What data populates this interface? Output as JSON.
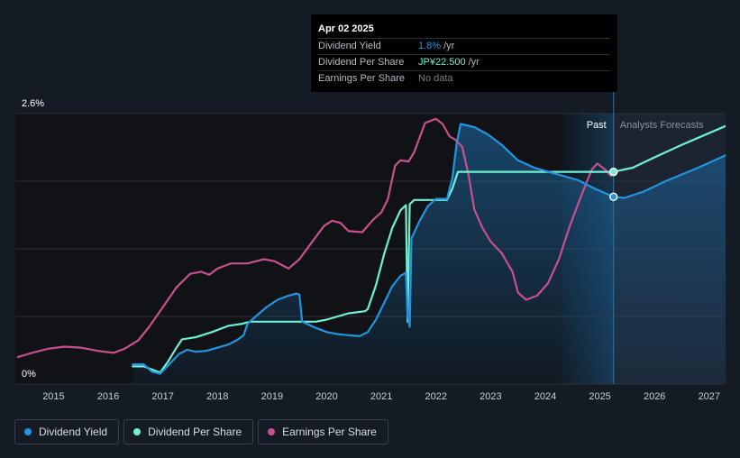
{
  "tooltip": {
    "date": "Apr 02 2025",
    "rows": [
      {
        "name": "Dividend Yield",
        "value": "1.8%",
        "unit": "/yr",
        "color": "#2394df"
      },
      {
        "name": "Dividend Per Share",
        "value": "JP¥22.500",
        "unit": "/yr",
        "color": "#6ff0d2"
      },
      {
        "name": "Earnings Per Share",
        "value": "No data",
        "unit": "",
        "color": "#7a7f87"
      }
    ]
  },
  "regions": {
    "past": "Past",
    "forecast": "Analysts Forecasts"
  },
  "legend": [
    {
      "label": "Dividend Yield",
      "color": "#2394df"
    },
    {
      "label": "Dividend Per Share",
      "color": "#6ff0d2"
    },
    {
      "label": "Earnings Per Share",
      "color": "#c94f8e"
    }
  ],
  "chart_data": {
    "type": "line",
    "x_ticks": [
      "2015",
      "2016",
      "2017",
      "2018",
      "2019",
      "2020",
      "2021",
      "2022",
      "2023",
      "2024",
      "2025",
      "2026",
      "2027"
    ],
    "y_ticks": [
      "0%",
      "2.6%"
    ],
    "ylim": [
      0,
      2.6
    ],
    "xlim": [
      2014.3,
      2027.3
    ],
    "past_end": 2025.25,
    "grid": true,
    "series": [
      {
        "name": "Dividend Yield",
        "color": "#2394df",
        "points": [
          [
            2016.45,
            0.19
          ],
          [
            2016.65,
            0.19
          ],
          [
            2016.8,
            0.12
          ],
          [
            2016.95,
            0.1
          ],
          [
            2017.1,
            0.18
          ],
          [
            2017.3,
            0.29
          ],
          [
            2017.45,
            0.33
          ],
          [
            2017.6,
            0.31
          ],
          [
            2017.8,
            0.32
          ],
          [
            2018.0,
            0.35
          ],
          [
            2018.2,
            0.38
          ],
          [
            2018.35,
            0.42
          ],
          [
            2018.48,
            0.47
          ],
          [
            2018.55,
            0.58
          ],
          [
            2018.7,
            0.65
          ],
          [
            2018.9,
            0.74
          ],
          [
            2019.1,
            0.81
          ],
          [
            2019.3,
            0.85
          ],
          [
            2019.45,
            0.87
          ],
          [
            2019.5,
            0.86
          ],
          [
            2019.55,
            0.6
          ],
          [
            2019.8,
            0.54
          ],
          [
            2020.0,
            0.5
          ],
          [
            2020.2,
            0.48
          ],
          [
            2020.4,
            0.47
          ],
          [
            2020.6,
            0.46
          ],
          [
            2020.75,
            0.5
          ],
          [
            2020.9,
            0.62
          ],
          [
            2021.05,
            0.78
          ],
          [
            2021.2,
            0.94
          ],
          [
            2021.35,
            1.04
          ],
          [
            2021.45,
            1.07
          ],
          [
            2021.48,
            0.65
          ],
          [
            2021.52,
            0.55
          ],
          [
            2021.55,
            1.4
          ],
          [
            2021.7,
            1.57
          ],
          [
            2021.85,
            1.71
          ],
          [
            2022.0,
            1.78
          ],
          [
            2022.2,
            1.78
          ],
          [
            2022.3,
            1.98
          ],
          [
            2022.38,
            2.32
          ],
          [
            2022.45,
            2.5
          ],
          [
            2022.7,
            2.47
          ],
          [
            2022.95,
            2.4
          ],
          [
            2023.2,
            2.3
          ],
          [
            2023.5,
            2.15
          ],
          [
            2023.8,
            2.08
          ],
          [
            2024.2,
            2.02
          ],
          [
            2024.6,
            1.96
          ],
          [
            2024.9,
            1.88
          ],
          [
            2025.25,
            1.8
          ],
          [
            2025.45,
            1.79
          ],
          [
            2025.8,
            1.85
          ],
          [
            2026.2,
            1.95
          ],
          [
            2026.8,
            2.08
          ],
          [
            2027.3,
            2.2
          ]
        ]
      },
      {
        "name": "Dividend Per Share",
        "color": "#6ff0d2",
        "points": [
          [
            2016.45,
            0.17
          ],
          [
            2016.65,
            0.17
          ],
          [
            2016.8,
            0.14
          ],
          [
            2016.95,
            0.11
          ],
          [
            2017.1,
            0.22
          ],
          [
            2017.25,
            0.35
          ],
          [
            2017.35,
            0.43
          ],
          [
            2017.6,
            0.45
          ],
          [
            2017.9,
            0.5
          ],
          [
            2018.2,
            0.56
          ],
          [
            2018.45,
            0.58
          ],
          [
            2018.6,
            0.6
          ],
          [
            2019.0,
            0.6
          ],
          [
            2019.5,
            0.6
          ],
          [
            2019.8,
            0.6
          ],
          [
            2020.0,
            0.62
          ],
          [
            2020.2,
            0.65
          ],
          [
            2020.4,
            0.68
          ],
          [
            2020.7,
            0.7
          ],
          [
            2020.75,
            0.72
          ],
          [
            2020.9,
            0.95
          ],
          [
            2021.05,
            1.25
          ],
          [
            2021.2,
            1.5
          ],
          [
            2021.35,
            1.67
          ],
          [
            2021.45,
            1.72
          ],
          [
            2021.48,
            0.6
          ],
          [
            2021.52,
            1.73
          ],
          [
            2021.6,
            1.77
          ],
          [
            2021.9,
            1.77
          ],
          [
            2022.2,
            1.77
          ],
          [
            2022.3,
            1.88
          ],
          [
            2022.4,
            2.04
          ],
          [
            2022.7,
            2.04
          ],
          [
            2023.5,
            2.04
          ],
          [
            2024.5,
            2.04
          ],
          [
            2025.25,
            2.04
          ],
          [
            2025.6,
            2.08
          ],
          [
            2026.0,
            2.18
          ],
          [
            2026.5,
            2.3
          ],
          [
            2027.3,
            2.48
          ]
        ]
      },
      {
        "name": "Earnings Per Share",
        "color": "#c94f8e",
        "points": [
          [
            2014.35,
            0.26
          ],
          [
            2014.6,
            0.3
          ],
          [
            2014.9,
            0.34
          ],
          [
            2015.2,
            0.36
          ],
          [
            2015.5,
            0.35
          ],
          [
            2015.8,
            0.32
          ],
          [
            2016.1,
            0.3
          ],
          [
            2016.3,
            0.34
          ],
          [
            2016.55,
            0.42
          ],
          [
            2016.75,
            0.55
          ],
          [
            2017.0,
            0.74
          ],
          [
            2017.25,
            0.93
          ],
          [
            2017.5,
            1.06
          ],
          [
            2017.7,
            1.08
          ],
          [
            2017.85,
            1.05
          ],
          [
            2018.0,
            1.11
          ],
          [
            2018.25,
            1.16
          ],
          [
            2018.55,
            1.16
          ],
          [
            2018.85,
            1.2
          ],
          [
            2019.05,
            1.18
          ],
          [
            2019.3,
            1.11
          ],
          [
            2019.5,
            1.2
          ],
          [
            2019.75,
            1.38
          ],
          [
            2019.95,
            1.52
          ],
          [
            2020.1,
            1.57
          ],
          [
            2020.25,
            1.55
          ],
          [
            2020.4,
            1.47
          ],
          [
            2020.65,
            1.46
          ],
          [
            2020.85,
            1.58
          ],
          [
            2021.0,
            1.65
          ],
          [
            2021.12,
            1.78
          ],
          [
            2021.25,
            2.1
          ],
          [
            2021.35,
            2.15
          ],
          [
            2021.5,
            2.14
          ],
          [
            2021.6,
            2.23
          ],
          [
            2021.8,
            2.51
          ],
          [
            2022.0,
            2.55
          ],
          [
            2022.12,
            2.5
          ],
          [
            2022.25,
            2.38
          ],
          [
            2022.35,
            2.35
          ],
          [
            2022.48,
            2.28
          ],
          [
            2022.6,
            2.0
          ],
          [
            2022.7,
            1.68
          ],
          [
            2022.85,
            1.5
          ],
          [
            2023.0,
            1.37
          ],
          [
            2023.2,
            1.26
          ],
          [
            2023.4,
            1.08
          ],
          [
            2023.5,
            0.88
          ],
          [
            2023.65,
            0.81
          ],
          [
            2023.85,
            0.85
          ],
          [
            2024.05,
            0.97
          ],
          [
            2024.25,
            1.2
          ],
          [
            2024.45,
            1.52
          ],
          [
            2024.65,
            1.8
          ],
          [
            2024.85,
            2.06
          ],
          [
            2024.95,
            2.12
          ],
          [
            2025.1,
            2.06
          ],
          [
            2025.2,
            2.0
          ]
        ]
      }
    ]
  }
}
